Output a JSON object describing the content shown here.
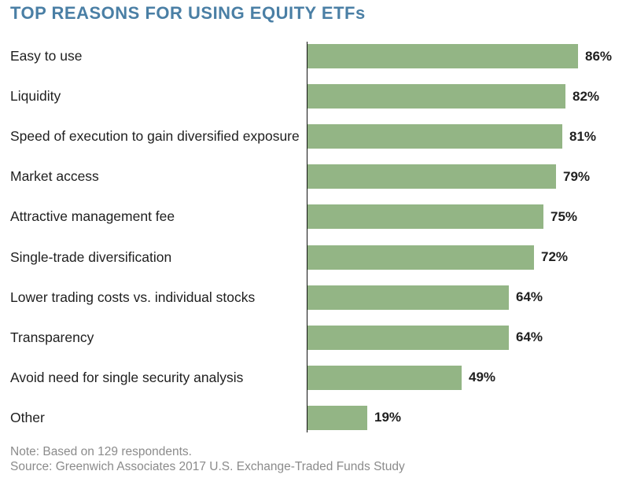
{
  "chart_data": {
    "type": "bar",
    "orientation": "horizontal",
    "title": "TOP REASONS FOR USING EQUITY ETFs",
    "categories": [
      "Easy to use",
      "Liquidity",
      "Speed of execution to gain diversified exposure",
      "Market access",
      "Attractive management fee",
      "Single-trade diversification",
      "Lower trading costs vs. individual stocks",
      "Transparency",
      "Avoid need for single security analysis",
      "Other"
    ],
    "values": [
      86,
      82,
      81,
      79,
      75,
      72,
      64,
      64,
      49,
      19
    ],
    "value_labels": [
      "86%",
      "82%",
      "81%",
      "79%",
      "75%",
      "72%",
      "64%",
      "64%",
      "49%",
      "19%"
    ],
    "xlim": [
      0,
      100
    ],
    "grid": false,
    "legend": "none"
  },
  "notes": {
    "note": "Note: Based on 129 respondents.",
    "source": "Source: Greenwich Associates 2017 U.S. Exchange-Traded Funds Study"
  },
  "colors": {
    "title": "#4a7fa5",
    "bar": "#93b585",
    "axis": "#111111"
  }
}
